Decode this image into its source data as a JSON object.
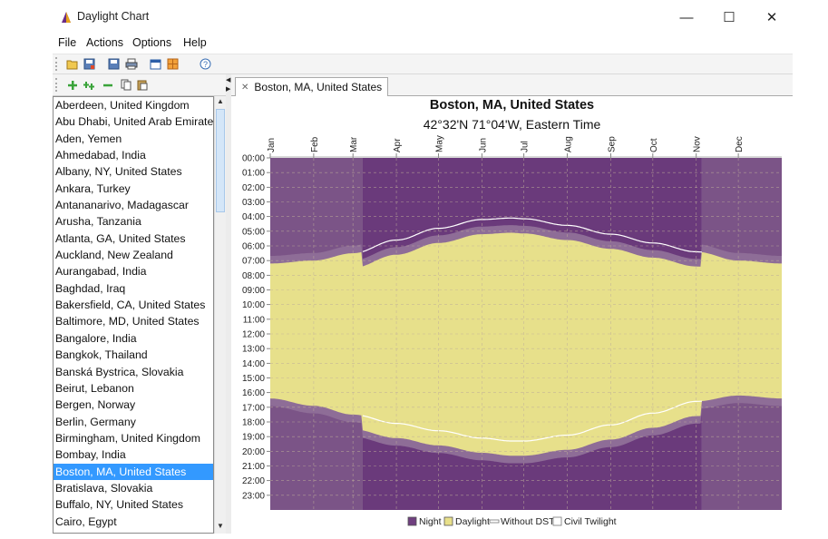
{
  "window": {
    "title": "Daylight Chart",
    "minimize_glyph": "—",
    "maximize_glyph": "☐",
    "close_glyph": "✕"
  },
  "menu": {
    "items": [
      "File",
      "Actions",
      "Options",
      "Help"
    ]
  },
  "toolbar": {
    "icons": [
      "open-icon",
      "save-as-icon",
      "save-icon",
      "print-icon",
      "window-icon",
      "grid-icon",
      "help-icon"
    ]
  },
  "locations_toolbar": {
    "icons": [
      "add-icon",
      "add-multiple-icon",
      "remove-icon",
      "copy-icon",
      "paste-icon"
    ]
  },
  "locations": {
    "items": [
      "Aberdeen, United Kingdom",
      "Abu Dhabi, United Arab Emirates",
      "Aden, Yemen",
      "Ahmedabad, India",
      "Albany, NY, United States",
      "Ankara, Turkey",
      "Antananarivo, Madagascar",
      "Arusha, Tanzania",
      "Atlanta, GA, United States",
      "Auckland, New Zealand",
      "Aurangabad, India",
      "Baghdad, Iraq",
      "Bakersfield, CA, United States",
      "Baltimore, MD, United States",
      "Bangalore, India",
      "Bangkok, Thailand",
      "Banská Bystrica, Slovakia",
      "Beirut, Lebanon",
      "Bergen, Norway",
      "Berlin, Germany",
      "Birmingham, United Kingdom",
      "Bombay, India",
      "Boston, MA, United States",
      "Bratislava, Slovakia",
      "Buffalo, NY, United States",
      "Cairo, Egypt"
    ],
    "selected_index": 22
  },
  "tab": {
    "label": "Boston, MA, United States",
    "close_glyph": "✕"
  },
  "chart_data": {
    "type": "area",
    "title": "Boston, MA, United States",
    "subtitle": "42°32'N 71°04'W, Eastern Time",
    "x_ticks": [
      "Jan",
      "Feb",
      "Mar",
      "Apr",
      "May",
      "Jun",
      "Jul",
      "Aug",
      "Sep",
      "Oct",
      "Nov",
      "Dec"
    ],
    "y_ticks": [
      "00:00",
      "01:00",
      "02:00",
      "03:00",
      "04:00",
      "05:00",
      "06:00",
      "07:00",
      "08:00",
      "09:00",
      "10:00",
      "11:00",
      "12:00",
      "13:00",
      "14:00",
      "15:00",
      "16:00",
      "17:00",
      "18:00",
      "19:00",
      "20:00",
      "21:00",
      "22:00",
      "23:00"
    ],
    "ylim_hours": [
      0,
      24
    ],
    "x_days": [
      0,
      365
    ],
    "dst": {
      "start_day": 66,
      "end_day": 308
    },
    "sunrise_standard_hours": {
      "days": [
        0,
        31,
        59,
        90,
        120,
        151,
        172,
        181,
        212,
        243,
        273,
        304,
        334,
        365
      ],
      "values": [
        7.2,
        7.0,
        6.5,
        5.6,
        4.8,
        4.2,
        4.1,
        4.15,
        4.6,
        5.2,
        5.8,
        6.4,
        7.0,
        7.2
      ]
    },
    "sunset_standard_hours": {
      "days": [
        0,
        31,
        59,
        90,
        120,
        151,
        172,
        181,
        212,
        243,
        273,
        304,
        334,
        365
      ],
      "values": [
        16.4,
        16.9,
        17.5,
        18.1,
        18.6,
        19.1,
        19.3,
        19.3,
        18.9,
        18.2,
        17.4,
        16.6,
        16.2,
        16.4
      ]
    },
    "twilight_minutes": 31,
    "grid": true,
    "legend_position": "bottom",
    "series": [
      {
        "name": "Night",
        "color": "#6f3f7f"
      },
      {
        "name": "Daylight",
        "color": "#e8e08a"
      },
      {
        "name": "Without DST",
        "color": "#ffffff"
      },
      {
        "name": "Civil Twilight",
        "color": "#ffffff"
      }
    ],
    "colors": {
      "night_outer": "#7b5487",
      "night_dst": "#6a3a7b",
      "twilight": "#8e6d97",
      "daylight": "#e7e08b",
      "grid": "#bfae9a"
    }
  }
}
